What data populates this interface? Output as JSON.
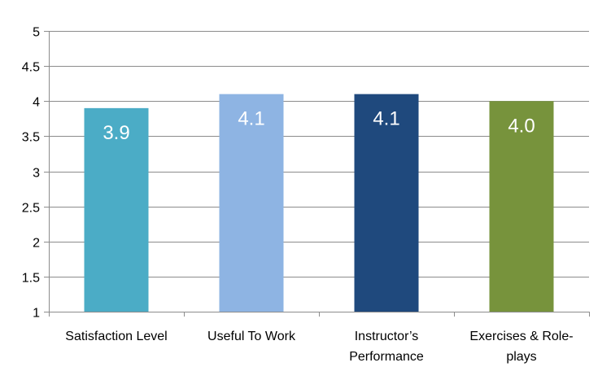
{
  "chart_data": {
    "type": "bar",
    "title": "",
    "xlabel": "",
    "ylabel": "",
    "categories": [
      [
        "Satisfaction Level"
      ],
      [
        "Useful To Work"
      ],
      [
        "Instructor’s",
        "Performance"
      ],
      [
        "Exercises & Role-",
        "plays"
      ]
    ],
    "values": [
      3.9,
      4.1,
      4.1,
      4.0
    ],
    "value_labels": [
      "3.9",
      "4.1",
      "4.1",
      "4.0"
    ],
    "colors": [
      "#4bacc6",
      "#8eb4e3",
      "#1f497d",
      "#77933c"
    ],
    "ylim": [
      1,
      5
    ],
    "yticks": [
      1,
      1.5,
      2,
      2.5,
      3,
      3.5,
      4,
      4.5,
      5
    ],
    "ytick_labels": [
      "1",
      "1.5",
      "2",
      "2.5",
      "3",
      "3.5",
      "4",
      "4.5",
      "5"
    ],
    "grid": true,
    "legend": "none"
  }
}
